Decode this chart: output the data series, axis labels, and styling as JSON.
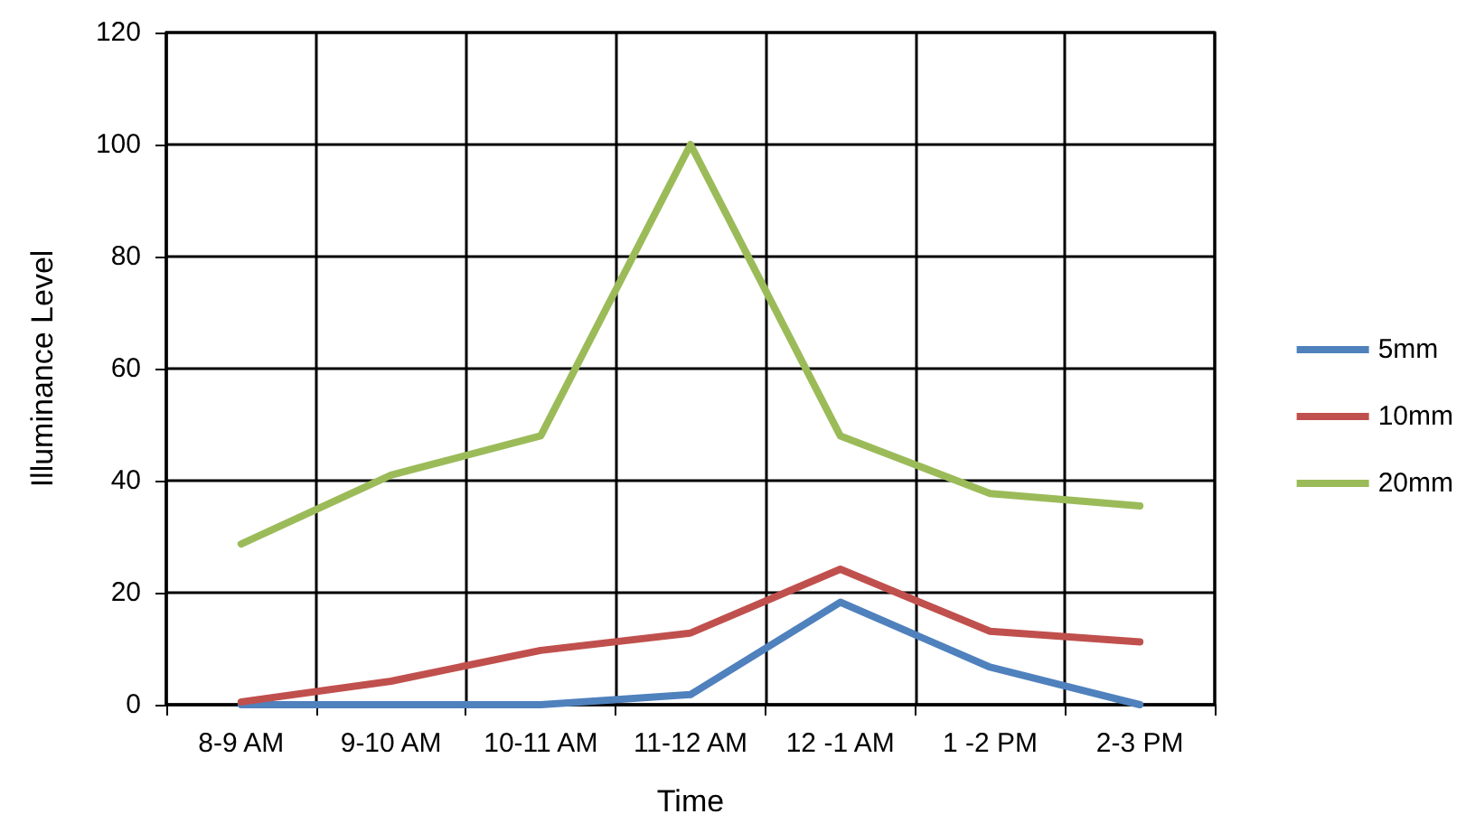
{
  "chart_data": {
    "type": "line",
    "xlabel": "Time",
    "ylabel": "Illuminance Level",
    "categories": [
      "8-9 AM",
      "9-10 AM",
      "10-11 AM",
      "11-12 AM",
      "12 -1 AM",
      "1 -2 PM",
      "2-3 PM"
    ],
    "series": [
      {
        "name": "5mm",
        "color": "#4f81bd",
        "values": [
          0,
          0,
          0,
          1.8,
          18.3,
          6.7,
          0
        ]
      },
      {
        "name": "10mm",
        "color": "#c0504d",
        "values": [
          0.5,
          4.2,
          9.7,
          12.8,
          24.2,
          13.1,
          11.2
        ]
      },
      {
        "name": "20mm",
        "color": "#9bbb59",
        "values": [
          28.7,
          41,
          48,
          100,
          48,
          37.7,
          35.5
        ]
      }
    ],
    "ylim": [
      0,
      120
    ],
    "yticks": [
      0,
      20,
      40,
      60,
      80,
      100,
      120
    ],
    "grid": true,
    "legend": "right",
    "marker": "none",
    "line_style": "solid"
  }
}
